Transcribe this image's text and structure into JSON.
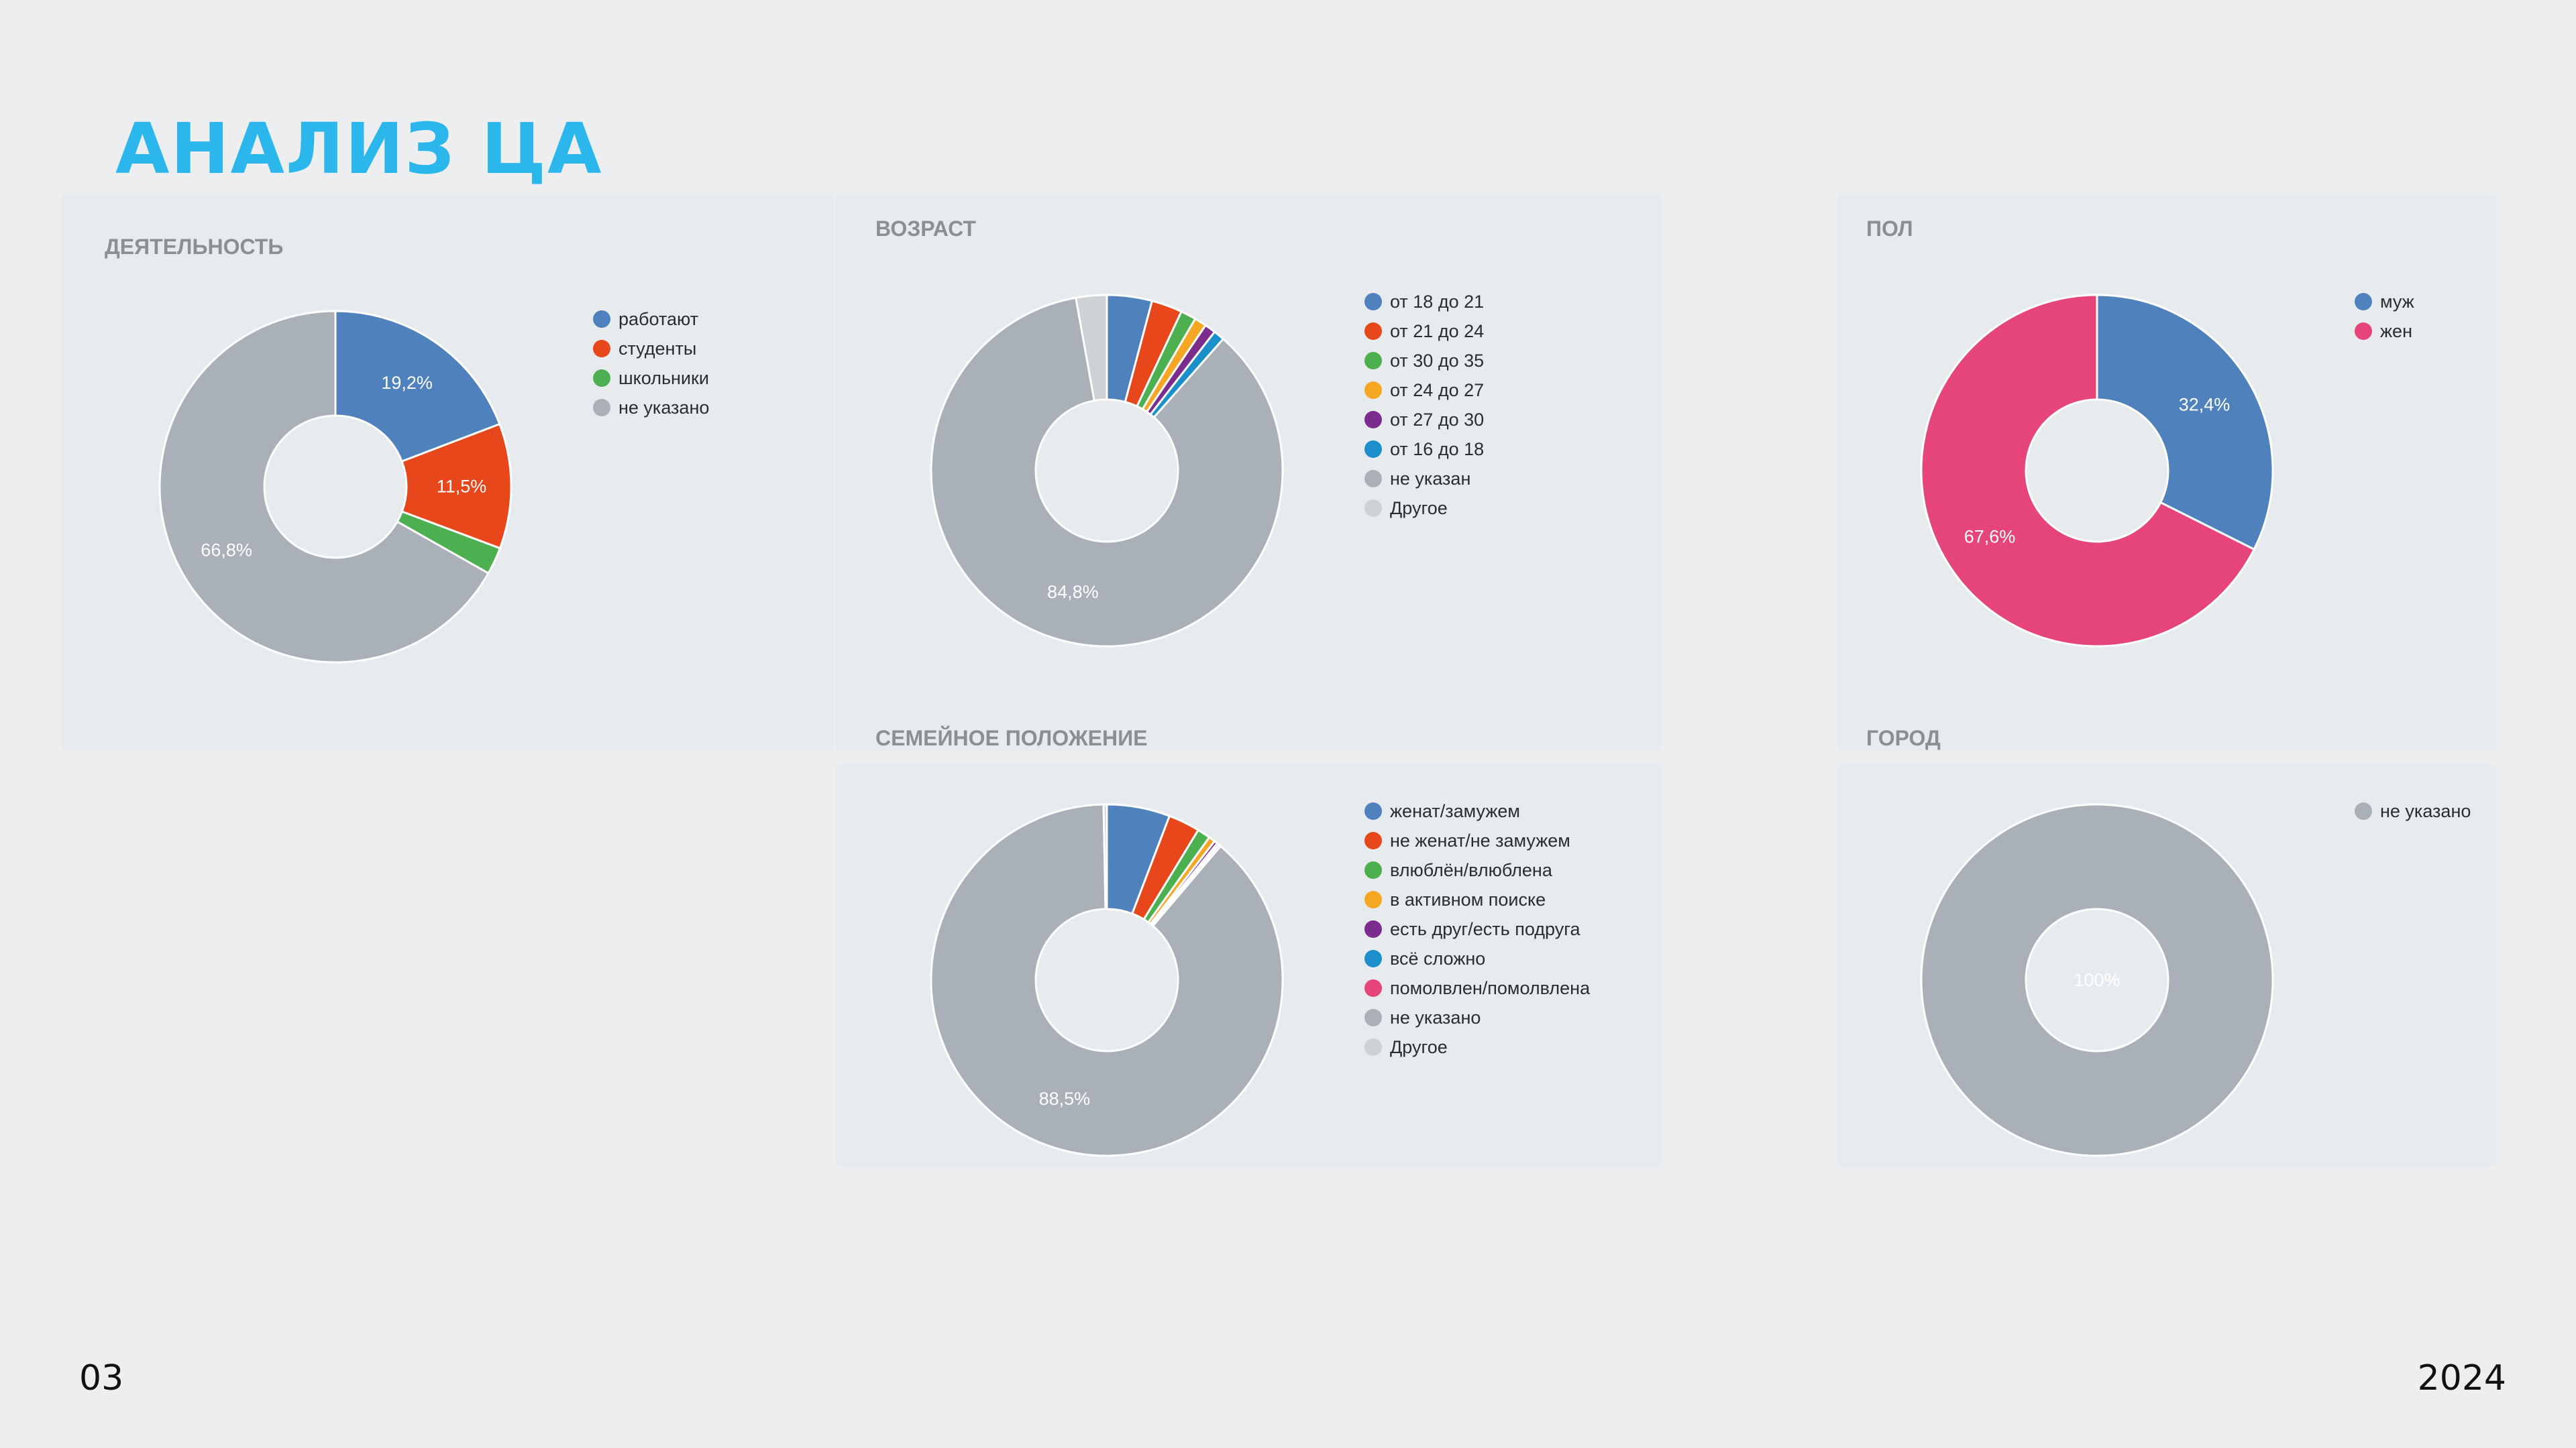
{
  "slide": {
    "title": "АНАЛИЗ ЦА",
    "page_number": "03",
    "year": "2024"
  },
  "chart_data": [
    {
      "type": "pie",
      "donut": true,
      "title": "ДЕЯТЕЛЬНОСТЬ",
      "legend": "right",
      "slices": [
        {
          "label": "работают",
          "value": 19.2,
          "color": "#4f81bd",
          "data_label": "19,2%"
        },
        {
          "label": "студенты",
          "value": 11.5,
          "color": "#e8461b",
          "data_label": "11,5%"
        },
        {
          "label": "школьники",
          "value": 2.5,
          "color": "#4caf50",
          "data_label": ""
        },
        {
          "label": "не указано",
          "value": 66.8,
          "color": "#a9b0b8",
          "data_label": "66,8%"
        }
      ]
    },
    {
      "type": "pie",
      "donut": true,
      "title": "ВОЗРАСТ",
      "legend": "right",
      "slices": [
        {
          "label": "от 18 до 21",
          "value": 4.1,
          "color": "#4f81bd",
          "data_label": ""
        },
        {
          "label": "от 21 до 24",
          "value": 2.8,
          "color": "#e8461b",
          "data_label": ""
        },
        {
          "label": "от 30 до 35",
          "value": 1.4,
          "color": "#4caf50",
          "data_label": ""
        },
        {
          "label": "от 24 до 27",
          "value": 1.1,
          "color": "#f5a623",
          "data_label": ""
        },
        {
          "label": "от 27 до 30",
          "value": 1.0,
          "color": "#7b2d8e",
          "data_label": ""
        },
        {
          "label": "от 16 до 18",
          "value": 1.0,
          "color": "#1a8fc9",
          "data_label": ""
        },
        {
          "label": "не указан",
          "value": 84.8,
          "color": "#a9b0b8",
          "data_label": "84,8%"
        },
        {
          "label": "Другое",
          "value": 2.8,
          "color": "#cfd2d5",
          "data_label": ""
        }
      ]
    },
    {
      "type": "pie",
      "donut": true,
      "title": "ПОЛ",
      "legend": "right",
      "slices": [
        {
          "label": "муж",
          "value": 32.4,
          "color": "#4f81bd",
          "data_label": "32,4%"
        },
        {
          "label": "жен",
          "value": 67.6,
          "color": "#e6457a",
          "data_label": "67,6%"
        }
      ]
    },
    {
      "type": "pie",
      "donut": true,
      "title": "СЕМЕЙНОЕ ПОЛОЖЕНИЕ",
      "legend": "right",
      "slices": [
        {
          "label": "женат/замужем",
          "value": 5.8,
          "color": "#4f81bd",
          "data_label": ""
        },
        {
          "label": "не женат/не замужем",
          "value": 2.9,
          "color": "#e8461b",
          "data_label": ""
        },
        {
          "label": "влюблён/влюблена",
          "value": 1.2,
          "color": "#4caf50",
          "data_label": ""
        },
        {
          "label": "в активном поиске",
          "value": 0.6,
          "color": "#f5a623",
          "data_label": ""
        },
        {
          "label": "есть друг/есть подруга",
          "value": 0.3,
          "color": "#7b2d8e",
          "data_label": ""
        },
        {
          "label": "всё сложно",
          "value": 0.2,
          "color": "#1a8fc9",
          "data_label": ""
        },
        {
          "label": "помолвлен/помолвлена",
          "value": 0.2,
          "color": "#e6457a",
          "data_label": ""
        },
        {
          "label": "не указано",
          "value": 88.5,
          "color": "#a9b0b8",
          "data_label": "88,5%"
        },
        {
          "label": "Другое",
          "value": 0.3,
          "color": "#cfd2d5",
          "data_label": ""
        }
      ]
    },
    {
      "type": "pie",
      "donut": true,
      "title": "ГОРОД",
      "legend": "right",
      "slices": [
        {
          "label": "не указано",
          "value": 100,
          "color": "#a9b0b8",
          "data_label": "100%"
        }
      ]
    }
  ]
}
